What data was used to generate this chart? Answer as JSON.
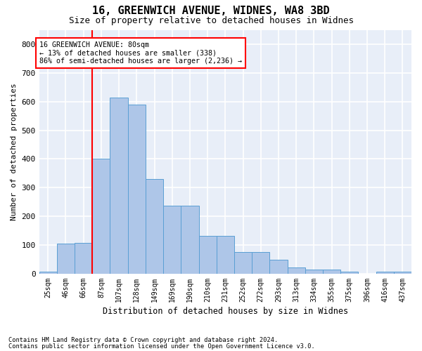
{
  "title_line1": "16, GREENWICH AVENUE, WIDNES, WA8 3BD",
  "title_line2": "Size of property relative to detached houses in Widnes",
  "xlabel": "Distribution of detached houses by size in Widnes",
  "ylabel": "Number of detached properties",
  "categories": [
    "25sqm",
    "46sqm",
    "66sqm",
    "87sqm",
    "107sqm",
    "128sqm",
    "149sqm",
    "169sqm",
    "190sqm",
    "210sqm",
    "231sqm",
    "252sqm",
    "272sqm",
    "293sqm",
    "313sqm",
    "334sqm",
    "355sqm",
    "375sqm",
    "396sqm",
    "416sqm",
    "437sqm"
  ],
  "values": [
    8,
    105,
    107,
    400,
    614,
    590,
    330,
    238,
    238,
    133,
    133,
    75,
    75,
    48,
    22,
    15,
    15,
    8,
    0,
    8,
    8
  ],
  "bar_color": "#aec6e8",
  "bar_edge_color": "#5a9fd4",
  "background_color": "#e8eef8",
  "grid_color": "#ffffff",
  "annotation_line1": "16 GREENWICH AVENUE: 80sqm",
  "annotation_line2": "← 13% of detached houses are smaller (338)",
  "annotation_line3": "86% of semi-detached houses are larger (2,236) →",
  "vline_x": 2.5,
  "vline_color": "red",
  "ylim": [
    0,
    850
  ],
  "yticks": [
    0,
    100,
    200,
    300,
    400,
    500,
    600,
    700,
    800
  ],
  "footer_line1": "Contains HM Land Registry data © Crown copyright and database right 2024.",
  "footer_line2": "Contains public sector information licensed under the Open Government Licence v3.0."
}
